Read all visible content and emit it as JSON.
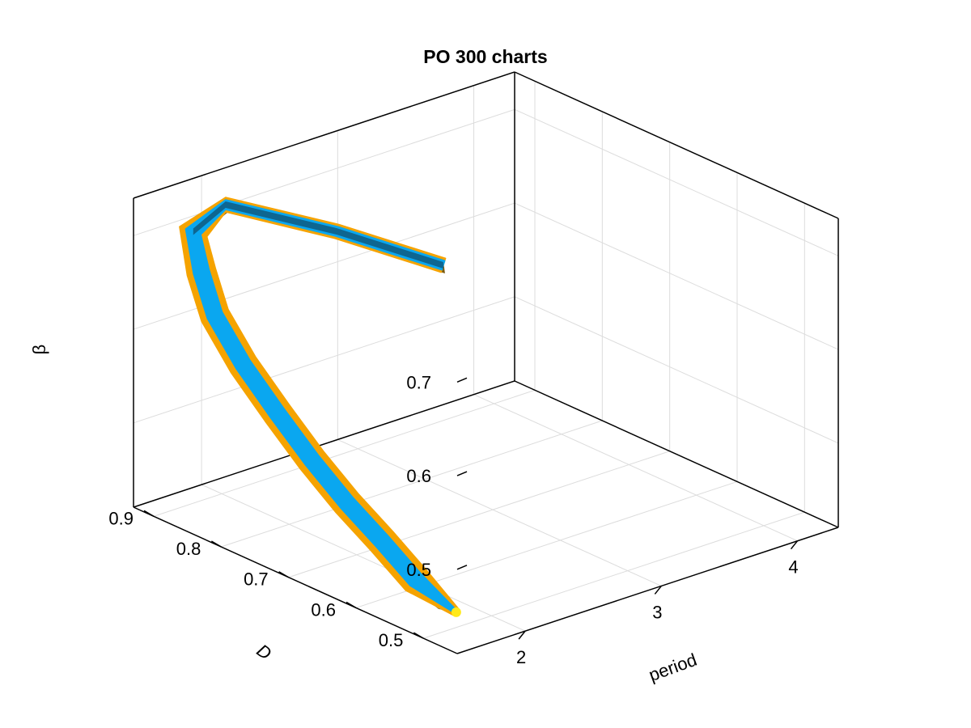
{
  "chart_data": {
    "type": "surface3d",
    "title": "PO 300 charts",
    "axes": {
      "x": {
        "label": "period",
        "ticks": [
          "2",
          "3",
          "4"
        ],
        "range": [
          1.5,
          4.3
        ]
      },
      "y": {
        "label": "D",
        "ticks": [
          "0.5",
          "0.6",
          "0.7",
          "0.8",
          "0.9"
        ],
        "range": [
          0.45,
          0.93
        ]
      },
      "z": {
        "label": "β",
        "ticks": [
          "0.5",
          "0.6",
          "0.7"
        ],
        "range": [
          0.41,
          0.74
        ]
      }
    },
    "grid": true,
    "colors": {
      "surface_inner": "#0aa7f0",
      "surface_edge": "#f5a300",
      "surface_dark": "#0e5f86",
      "surface_back": "#7a5a10",
      "marker": "#ffe91a"
    },
    "curve": [
      {
        "period": 1.84,
        "D": 0.52,
        "beta": 0.415
      },
      {
        "period": 1.84,
        "D": 0.58,
        "beta": 0.43
      },
      {
        "period": 1.84,
        "D": 0.63,
        "beta": 0.455
      },
      {
        "period": 1.83,
        "D": 0.68,
        "beta": 0.48
      },
      {
        "period": 1.82,
        "D": 0.73,
        "beta": 0.51
      },
      {
        "period": 1.81,
        "D": 0.78,
        "beta": 0.545
      },
      {
        "period": 1.81,
        "D": 0.83,
        "beta": 0.58
      },
      {
        "period": 1.8,
        "D": 0.87,
        "beta": 0.62
      },
      {
        "period": 1.8,
        "D": 0.89,
        "beta": 0.66
      },
      {
        "period": 1.79,
        "D": 0.9,
        "beta": 0.7
      },
      {
        "period": 1.83,
        "D": 0.86,
        "beta": 0.74
      },
      {
        "period": 2.05,
        "D": 0.74,
        "beta": 0.74
      },
      {
        "period": 2.29,
        "D": 0.63,
        "beta": 0.728
      }
    ],
    "marker": {
      "period": 1.84,
      "D": 0.52,
      "beta": 0.415
    }
  }
}
